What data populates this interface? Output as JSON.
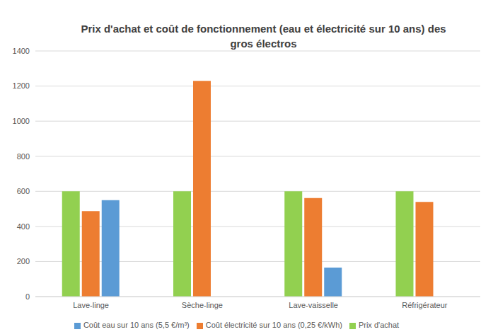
{
  "chart_data": {
    "type": "bar",
    "title": "Prix d'achat et coût de fonctionnement (eau et électricité sur 10 ans) des gros électros",
    "categories": [
      "Lave-linge",
      "Sèche-linge",
      "Lave-vaisselle",
      "Réfrigérateur"
    ],
    "series": [
      {
        "name": "Prix d'achat",
        "color": "#92d050",
        "values": [
          600,
          600,
          600,
          600
        ]
      },
      {
        "name": "Coût électricité sur 10 ans (0,25 €/kWh)",
        "color": "#ed7d31",
        "values": [
          487,
          1230,
          562,
          540
        ]
      },
      {
        "name": "Coût eau sur 10 ans (5,5 €/m³)",
        "color": "#5b9bd5",
        "values": [
          550,
          null,
          165,
          null
        ]
      }
    ],
    "ylim": [
      0,
      1400
    ],
    "yticks": [
      0,
      200,
      400,
      600,
      800,
      1000,
      1200,
      1400
    ],
    "grid": true,
    "legend": "bottom"
  }
}
